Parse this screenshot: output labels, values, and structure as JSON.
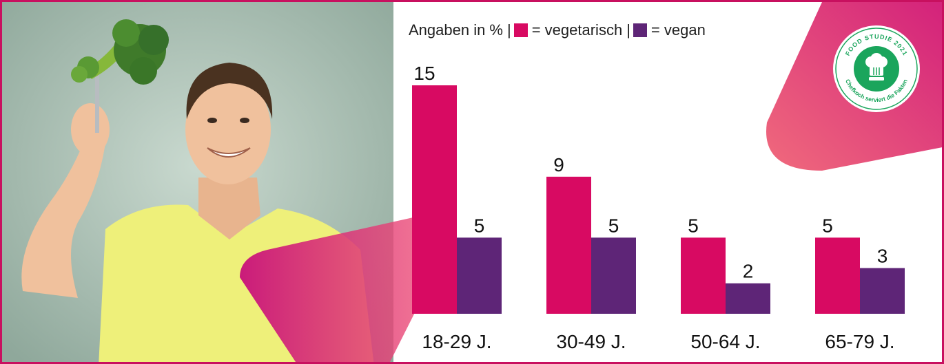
{
  "legend": {
    "prefix": "Angaben in %",
    "sep": "|",
    "veg_label": "= vegetarisch",
    "vegan_label": "= vegan"
  },
  "colors": {
    "vegetarisch": "#d80a62",
    "vegan": "#5e2577",
    "frame": "#c8105f"
  },
  "badge": {
    "top_text": "FOOD STUDIE 2021",
    "bottom_text": "Chefkoch serviert die Fakten",
    "icon": "chef-hat-icon"
  },
  "photo": {
    "subject": "young man in yellow t-shirt holding broccoli on a fork"
  },
  "chart_data": {
    "type": "bar",
    "categories": [
      "18-29 J.",
      "30-49 J.",
      "50-64 J.",
      "65-79 J."
    ],
    "series": [
      {
        "name": "vegetarisch",
        "values": [
          15,
          9,
          5,
          5
        ]
      },
      {
        "name": "vegan",
        "values": [
          5,
          5,
          2,
          3
        ]
      }
    ],
    "ylim": [
      0,
      15
    ],
    "unit": "%",
    "grid": false,
    "legend_position": "top"
  }
}
